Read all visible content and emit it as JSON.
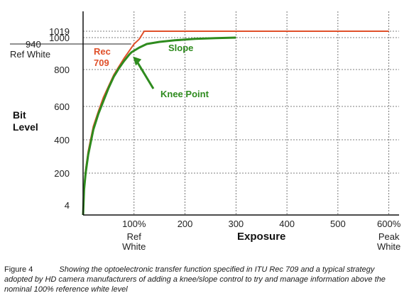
{
  "chart_data": {
    "type": "line",
    "xlabel": "Exposure",
    "ylabel_lines": [
      "Bit",
      "Level"
    ],
    "x_ticks": [
      {
        "value": 100,
        "label": "100%",
        "sub": [
          "Ref",
          "White"
        ]
      },
      {
        "value": 200,
        "label": "200",
        "sub": []
      },
      {
        "value": 300,
        "label": "300",
        "sub": []
      },
      {
        "value": 400,
        "label": "400",
        "sub": []
      },
      {
        "value": 500,
        "label": "500",
        "sub": []
      },
      {
        "value": 600,
        "label": "600%",
        "sub": [
          "Peak",
          "White"
        ]
      }
    ],
    "y_ticks": [
      {
        "value": 4,
        "label": "4"
      },
      {
        "value": 200,
        "label": "200"
      },
      {
        "value": 400,
        "label": "400"
      },
      {
        "value": 600,
        "label": "600"
      },
      {
        "value": 800,
        "label": "800"
      },
      {
        "value": 1000,
        "label": "1000"
      },
      {
        "value": 1019,
        "label": "1019"
      }
    ],
    "ref_white": {
      "value": 940,
      "label_lines": [
        "940",
        "Ref White"
      ]
    },
    "xlim": [
      0,
      620
    ],
    "ylim": [
      0,
      1080
    ],
    "series": [
      {
        "name": "Rec 709",
        "label_lines": [
          "Rec",
          "709"
        ],
        "color": "#e0502a",
        "x": [
          0,
          2,
          5,
          10,
          20,
          30,
          40,
          50,
          60,
          70,
          80,
          90,
          100,
          110,
          120,
          600
        ],
        "y": [
          0,
          110,
          220,
          330,
          480,
          570,
          650,
          710,
          770,
          815,
          860,
          900,
          940,
          985,
          1019,
          1019
        ]
      },
      {
        "name": "Slope",
        "color": "#2e8b1e",
        "x": [
          0,
          2,
          5,
          10,
          20,
          30,
          40,
          50,
          60,
          70,
          80,
          90,
          95,
          110,
          125,
          150,
          180,
          220,
          260,
          300
        ],
        "y": [
          0,
          100,
          200,
          310,
          460,
          555,
          630,
          700,
          760,
          805,
          845,
          880,
          895,
          920,
          940,
          960,
          975,
          988,
          995,
          1000
        ]
      }
    ],
    "annotation": {
      "label": "Knee Point",
      "x": 95,
      "y": 895,
      "color": "#2e8b1e"
    }
  },
  "caption": {
    "figure_label": "Figure 4",
    "text": "Showing the optoelectronic transfer function specified in ITU Rec 709 and  a typical strategy adopted by HD camera manufacturers of adding a knee/slope control to try and manage information above the nominal 100% reference white level"
  }
}
